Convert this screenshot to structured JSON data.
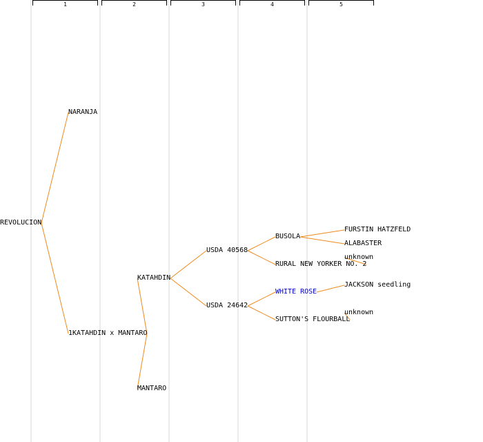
{
  "generations": [
    {
      "label": "1"
    },
    {
      "label": "2"
    },
    {
      "label": "3"
    },
    {
      "label": "4"
    },
    {
      "label": "5"
    }
  ],
  "nodes": {
    "revolucion": {
      "label": "REVOLUCION"
    },
    "naranja": {
      "label": "NARANJA"
    },
    "katahdin_x_mantaro": {
      "label": "1KATAHDIN x MANTARO"
    },
    "katahdin": {
      "label": "KATAHDIN"
    },
    "mantaro": {
      "label": "MANTARO"
    },
    "usda_40568": {
      "label": "USDA 40568"
    },
    "usda_24642": {
      "label": "USDA 24642"
    },
    "busola": {
      "label": "BUSOLA"
    },
    "rural_new_yorker": {
      "label": "RURAL NEW YORKER NO. 2"
    },
    "white_rose": {
      "label": "WHITE ROSE"
    },
    "suttons_flourball": {
      "label": "SUTTON'S FLOURBALL"
    },
    "furstin_hatzfeld": {
      "label": "FURSTIN HATZFELD"
    },
    "alabaster": {
      "label": "ALABASTER"
    },
    "unknown_1": {
      "label": "unknown"
    },
    "jackson_seedling": {
      "label": "JACKSON seedling"
    },
    "unknown_2": {
      "label": "unknown"
    }
  },
  "edges": [
    [
      "revolucion",
      "naranja"
    ],
    [
      "revolucion",
      "katahdin_x_mantaro"
    ],
    [
      "katahdin_x_mantaro",
      "katahdin"
    ],
    [
      "katahdin_x_mantaro",
      "mantaro"
    ],
    [
      "katahdin",
      "usda_40568"
    ],
    [
      "katahdin",
      "usda_24642"
    ],
    [
      "usda_40568",
      "busola"
    ],
    [
      "usda_40568",
      "rural_new_yorker"
    ],
    [
      "usda_24642",
      "white_rose"
    ],
    [
      "usda_24642",
      "suttons_flourball"
    ],
    [
      "busola",
      "furstin_hatzfeld"
    ],
    [
      "busola",
      "alabaster"
    ],
    [
      "rural_new_yorker",
      "unknown_1"
    ],
    [
      "white_rose",
      "jackson_seedling"
    ],
    [
      "suttons_flourball",
      "unknown_2"
    ]
  ],
  "colors": {
    "link": "#f08a1c",
    "highlight_text": "#0000cc",
    "column_line": "#ececec"
  }
}
